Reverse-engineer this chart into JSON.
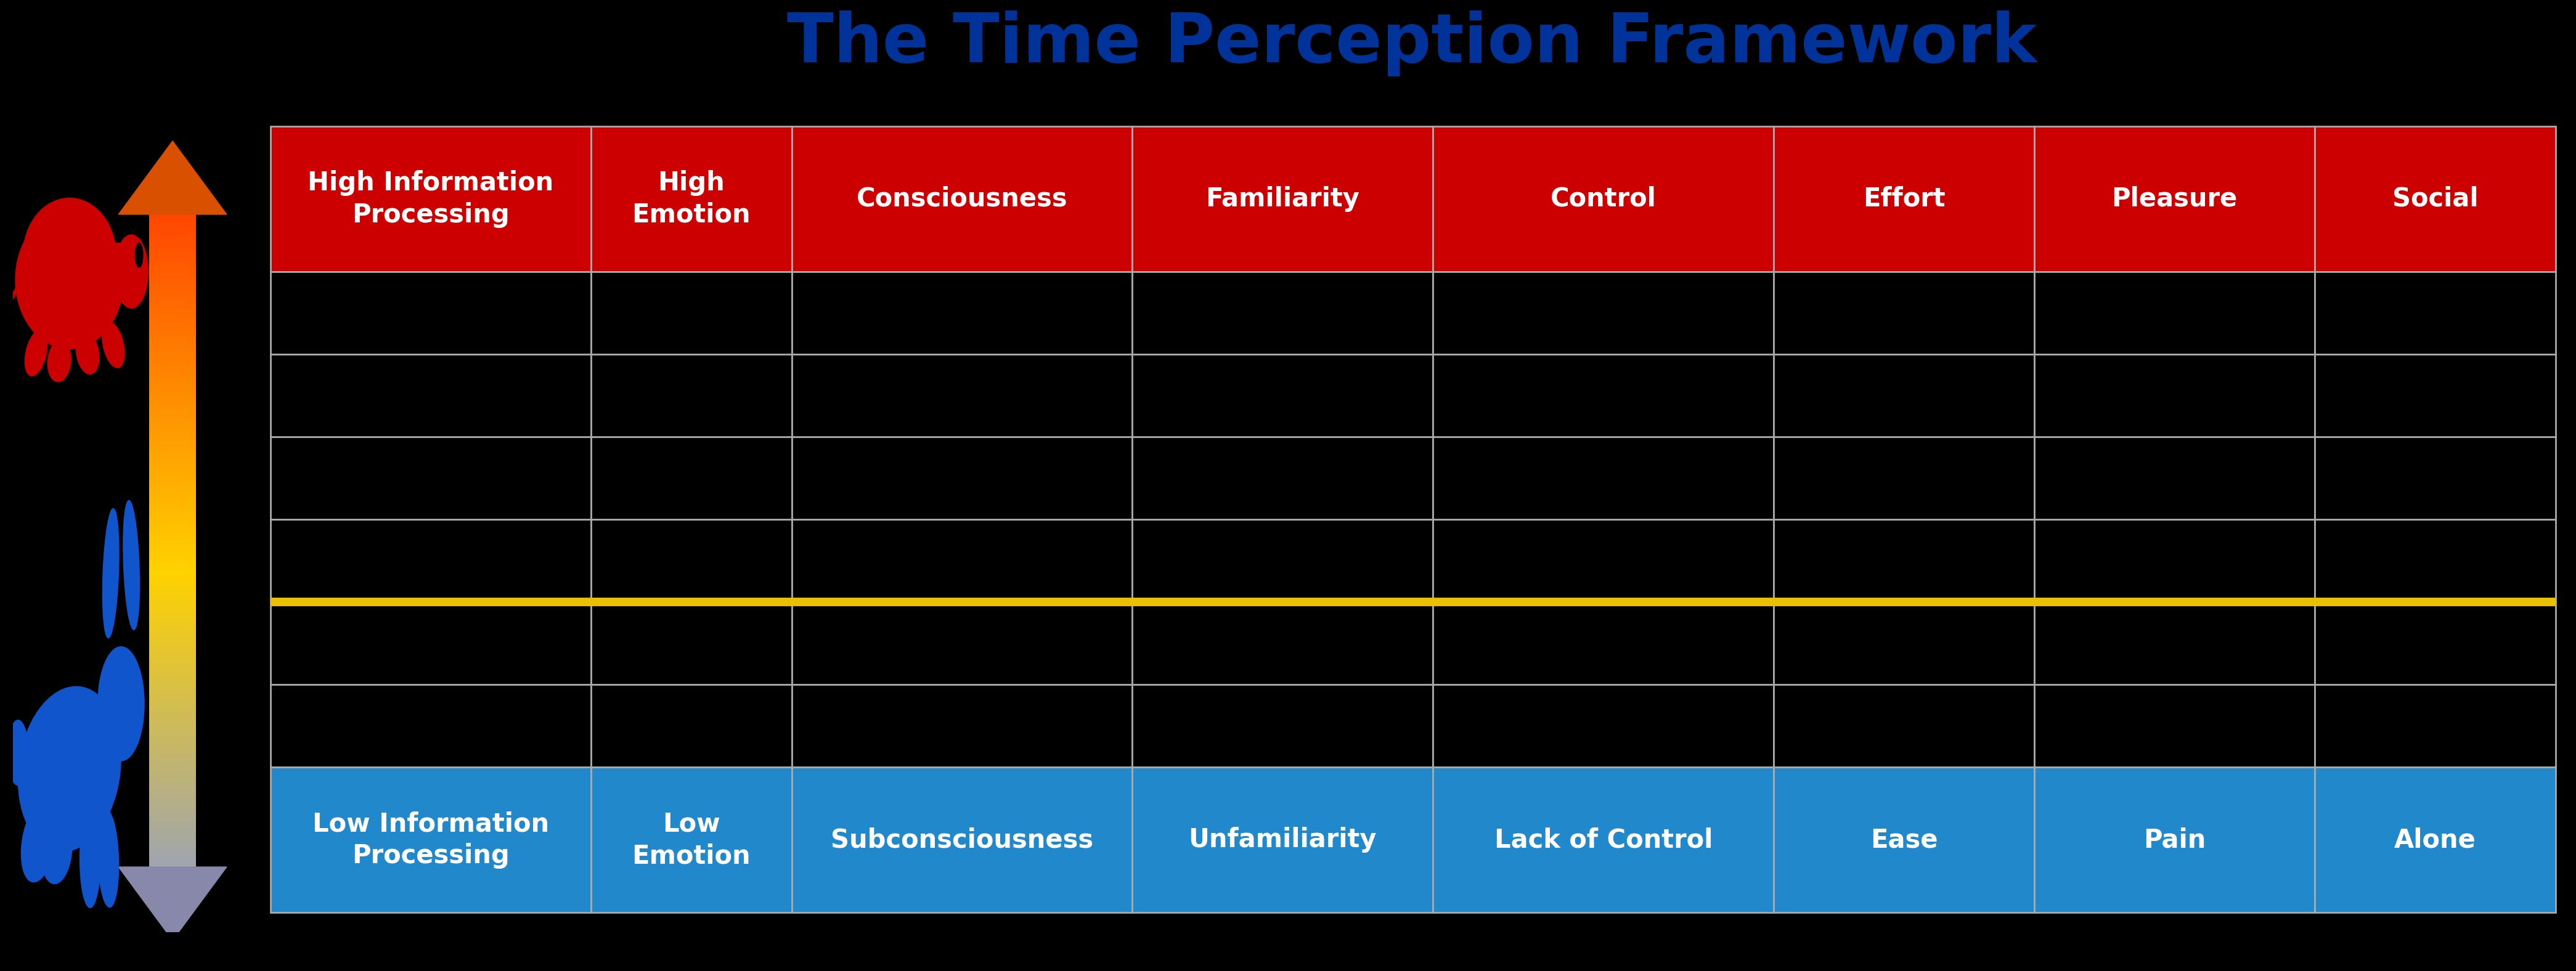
{
  "title": "The Time Perception Framework",
  "title_color": "#003399",
  "title_fontsize": 80,
  "background_color": "#000000",
  "header_row": [
    "High Information\nProcessing",
    "High\nEmotion",
    "Consciousness",
    "Familiarity",
    "Control",
    "Effort",
    "Pleasure",
    "Social"
  ],
  "footer_row": [
    "Low Information\nProcessing",
    "Low\nEmotion",
    "Subconsciousness",
    "Unfamiliarity",
    "Lack of Control",
    "Ease",
    "Pain",
    "Alone"
  ],
  "header_bg": "#cc0000",
  "footer_bg": "#2288cc",
  "cell_bg": "#000000",
  "header_text_color": "#ffffff",
  "footer_text_color": "#ffffff",
  "cell_text_color": "#ffffff",
  "grid_color": "#aaaaaa",
  "gold_line_color": "#e8c000",
  "n_data_rows": 6,
  "n_cols": 8,
  "col_widths": [
    1.6,
    1.0,
    1.7,
    1.5,
    1.7,
    1.3,
    1.4,
    1.2
  ],
  "gold_line_row": 3,
  "header_fontsize": 30,
  "footer_fontsize": 30,
  "cell_fontsize": 22,
  "turtle_color": "#cc0000",
  "rabbit_color": "#1155cc",
  "arrow_top_color": "#e06000",
  "arrow_mid_color": "#f0d000",
  "arrow_bot_color": "#9090aa"
}
